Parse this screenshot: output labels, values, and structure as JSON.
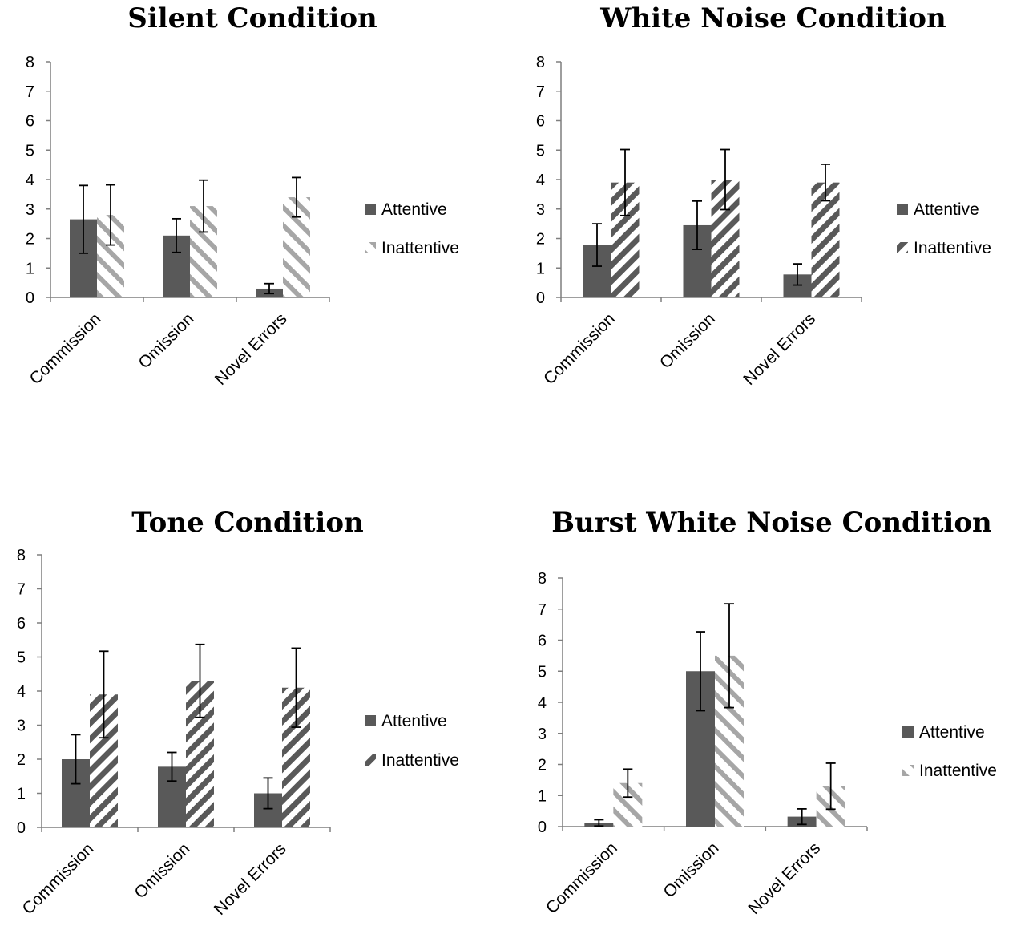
{
  "colors": {
    "attentive": "#595959",
    "inattentive_stripe": "#595959",
    "background": "#ffffff",
    "axis": "#7f7f7f"
  },
  "legend": {
    "placement": "right"
  },
  "chart_data": [
    {
      "type": "bar",
      "title": "Silent Condition",
      "categories": [
        "Commission",
        "Omission",
        "Novel Errors"
      ],
      "ylim": [
        0,
        8
      ],
      "yticks": [
        0,
        1,
        2,
        3,
        4,
        5,
        6,
        7,
        8
      ],
      "grid": false,
      "series": [
        {
          "name": "Attentive",
          "pattern": "solid",
          "values": [
            2.65,
            2.1,
            0.3
          ],
          "errors": [
            1.15,
            0.57,
            0.17
          ]
        },
        {
          "name": "Inattentive",
          "pattern": "light-stripes",
          "values": [
            2.8,
            3.1,
            3.4
          ],
          "errors": [
            1.02,
            0.88,
            0.67
          ]
        }
      ]
    },
    {
      "type": "bar",
      "title": "White Noise Condition",
      "categories": [
        "Commission",
        "Omission",
        "Novel Errors"
      ],
      "ylim": [
        0,
        8
      ],
      "yticks": [
        0,
        1,
        2,
        3,
        4,
        5,
        6,
        7,
        8
      ],
      "grid": false,
      "series": [
        {
          "name": "Attentive",
          "pattern": "solid",
          "values": [
            1.78,
            2.45,
            0.78
          ],
          "errors": [
            0.72,
            0.82,
            0.36
          ]
        },
        {
          "name": "Inattentive",
          "pattern": "dark-stripes",
          "values": [
            3.9,
            4.0,
            3.9
          ],
          "errors": [
            1.12,
            1.02,
            0.62
          ]
        }
      ]
    },
    {
      "type": "bar",
      "title": "Tone Condition",
      "categories": [
        "Commission",
        "Omission",
        "Novel Errors"
      ],
      "ylim": [
        0,
        8
      ],
      "yticks": [
        0,
        1,
        2,
        3,
        4,
        5,
        6,
        7,
        8
      ],
      "grid": false,
      "series": [
        {
          "name": "Attentive",
          "pattern": "solid",
          "values": [
            2.0,
            1.78,
            1.0
          ],
          "errors": [
            0.72,
            0.42,
            0.45
          ]
        },
        {
          "name": "Inattentive",
          "pattern": "dark-stripes",
          "values": [
            3.9,
            4.3,
            4.1
          ],
          "errors": [
            1.27,
            1.07,
            1.16
          ]
        }
      ]
    },
    {
      "type": "bar",
      "title": "Burst White Noise Condition",
      "categories": [
        "Commission",
        "Omission",
        "Novel Errors"
      ],
      "ylim": [
        0,
        8
      ],
      "yticks": [
        0,
        1,
        2,
        3,
        4,
        5,
        6,
        7,
        8
      ],
      "grid": false,
      "series": [
        {
          "name": "Attentive",
          "pattern": "solid",
          "values": [
            0.12,
            5.0,
            0.32
          ],
          "errors": [
            0.1,
            1.27,
            0.25
          ]
        },
        {
          "name": "Inattentive",
          "pattern": "light-stripes",
          "values": [
            1.4,
            5.5,
            1.3
          ],
          "errors": [
            0.45,
            1.67,
            0.74
          ]
        }
      ]
    }
  ]
}
